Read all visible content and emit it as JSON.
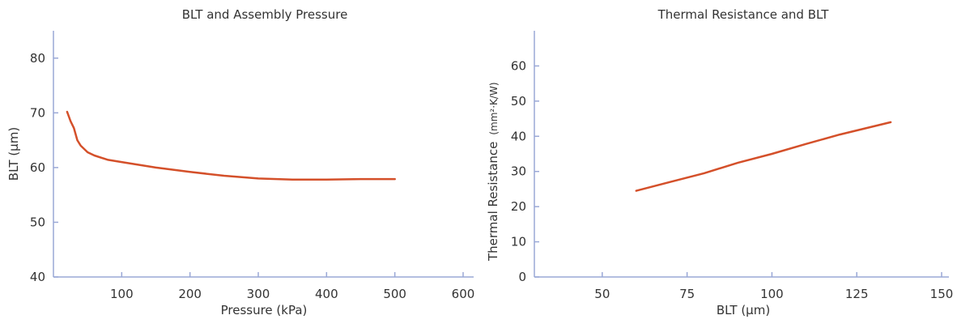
{
  "colors": {
    "axis": "#9aa8d6",
    "series": "#d4502a",
    "text": "#333333",
    "background": "#ffffff"
  },
  "chart_data": [
    {
      "type": "line",
      "title": "BLT and Assembly Pressure",
      "xlabel": "Pressure (kPa)",
      "ylabel": "BLT (µm)",
      "xlim": [
        0,
        600
      ],
      "ylim": [
        40,
        85
      ],
      "xticks": [
        100,
        200,
        300,
        400,
        500,
        600
      ],
      "yticks": [
        40,
        50,
        60,
        70,
        80
      ],
      "grid": false,
      "legend": "none",
      "series": [
        {
          "x": [
            20,
            25,
            30,
            35,
            40,
            50,
            60,
            80,
            100,
            150,
            200,
            250,
            300,
            350,
            400,
            450,
            500
          ],
          "y": [
            70.2,
            68.5,
            67.2,
            65.0,
            64.0,
            62.8,
            62.2,
            61.4,
            61.0,
            60.0,
            59.2,
            58.5,
            58.0,
            57.8,
            57.8,
            57.9,
            57.9
          ]
        }
      ]
    },
    {
      "type": "line",
      "title": "Thermal Resistance and BLT",
      "xlabel": "BLT (µm)",
      "ylabel": "Thermal Resistance",
      "ylabel_unit": "(mm²·K/W)",
      "xlim": [
        30,
        150
      ],
      "ylim": [
        0,
        70
      ],
      "xticks": [
        50,
        75,
        100,
        125,
        150
      ],
      "yticks": [
        0,
        10,
        20,
        30,
        40,
        50,
        60
      ],
      "grid": false,
      "legend": "none",
      "series": [
        {
          "x": [
            60,
            70,
            80,
            90,
            100,
            110,
            120,
            135
          ],
          "y": [
            24.5,
            27.0,
            29.5,
            32.5,
            35.0,
            37.8,
            40.5,
            44.0
          ]
        }
      ]
    }
  ]
}
